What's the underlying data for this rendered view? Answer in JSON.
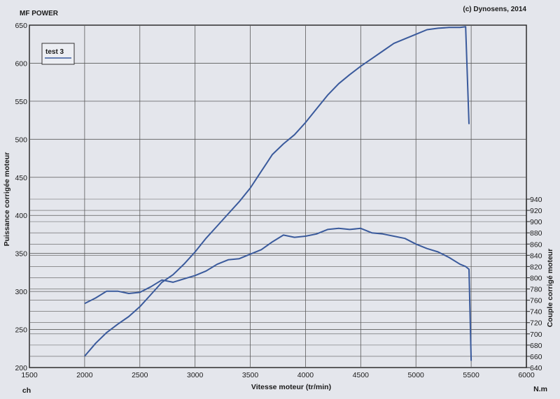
{
  "header": {
    "title": "MF POWER",
    "copyright": "(c) Dynosens, 2014"
  },
  "legend": {
    "label": "test 3"
  },
  "colors": {
    "curve": "#3a5a9c",
    "grid": "#5a5a5a",
    "background": "#e4e6ec"
  },
  "chart_data": {
    "type": "line",
    "title": "MF POWER",
    "xlabel": "Vitesse moteur (tr/min)",
    "ylabel": "Puissance corrigée moteur",
    "y2label": "Couple corrigé moteur",
    "x_unit": "N.m",
    "y_unit": "ch",
    "xlim": [
      1500,
      6000
    ],
    "ylim": [
      200,
      650
    ],
    "y2lim": [
      640,
      940
    ],
    "x_ticks": [
      1500,
      2000,
      2500,
      3000,
      3500,
      4000,
      4500,
      5000,
      5500,
      6000
    ],
    "y_ticks": [
      200,
      250,
      300,
      350,
      400,
      450,
      500,
      550,
      600,
      650
    ],
    "y2_ticks": [
      640,
      660,
      680,
      700,
      720,
      740,
      760,
      780,
      800,
      820,
      840,
      860,
      880,
      900,
      920,
      940
    ],
    "grid": true,
    "legend_position": "top-left",
    "series": [
      {
        "name": "test 3",
        "axis": "left",
        "x": [
          2000,
          2100,
          2200,
          2300,
          2400,
          2500,
          2600,
          2700,
          2800,
          2900,
          3000,
          3100,
          3200,
          3300,
          3400,
          3500,
          3600,
          3700,
          3800,
          3900,
          4000,
          4100,
          4200,
          4300,
          4400,
          4500,
          4600,
          4700,
          4800,
          4900,
          5000,
          5100,
          5200,
          5300,
          5400,
          5450,
          5480
        ],
        "values": [
          215,
          232,
          246,
          257,
          267,
          280,
          296,
          312,
          322,
          336,
          352,
          370,
          386,
          402,
          418,
          436,
          458,
          480,
          494,
          506,
          522,
          540,
          558,
          573,
          585,
          596,
          606,
          616,
          626,
          632,
          638,
          644,
          646,
          647,
          647,
          648,
          520
        ]
      },
      {
        "axis": "right",
        "x": [
          2000,
          2100,
          2200,
          2300,
          2400,
          2500,
          2600,
          2700,
          2800,
          2900,
          3000,
          3100,
          3200,
          3300,
          3400,
          3500,
          3600,
          3700,
          3800,
          3900,
          4000,
          4100,
          4200,
          4300,
          4400,
          4500,
          4600,
          4700,
          4800,
          4900,
          5000,
          5100,
          5200,
          5300,
          5400,
          5450,
          5480,
          5500
        ],
        "values": [
          754,
          764,
          776,
          776,
          772,
          774,
          784,
          796,
          792,
          798,
          804,
          812,
          824,
          832,
          834,
          842,
          850,
          864,
          876,
          872,
          874,
          878,
          886,
          888,
          886,
          888,
          880,
          878,
          874,
          870,
          860,
          852,
          846,
          836,
          824,
          820,
          815,
          652
        ]
      }
    ]
  }
}
